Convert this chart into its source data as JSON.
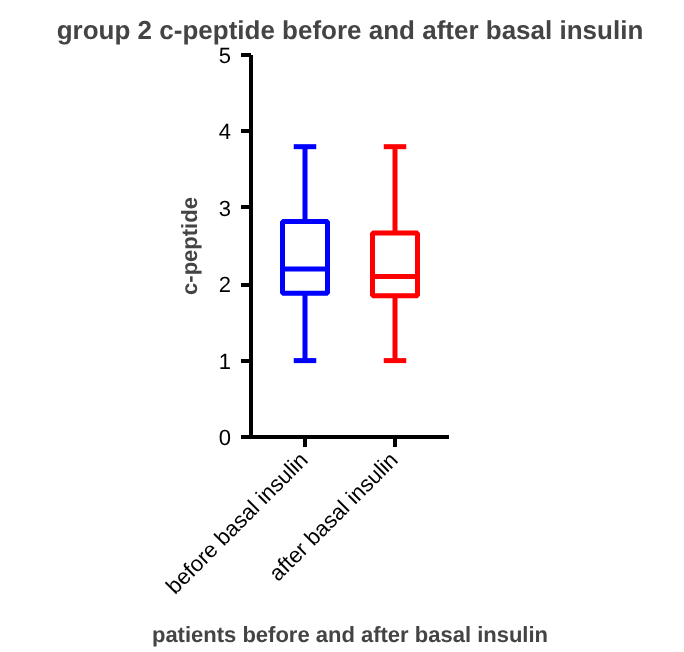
{
  "chart_data": {
    "type": "box",
    "title": "group 2 c-peptide before and after basal insulin",
    "xlabel": "patients before and after basal insulin",
    "ylabel": "c-peptide",
    "categories": [
      "before basal insulin",
      "after basal insulin"
    ],
    "colors": [
      "#0000ff",
      "#ff0000"
    ],
    "boxes": [
      {
        "low": 1.0,
        "q1": 1.88,
        "median": 2.2,
        "q3": 2.82,
        "high": 3.8
      },
      {
        "low": 1.0,
        "q1": 1.85,
        "median": 2.1,
        "q3": 2.67,
        "high": 3.8
      }
    ],
    "ylim": [
      0,
      5
    ],
    "yticks": [
      0,
      1,
      2,
      3,
      4,
      5
    ],
    "grid": false
  }
}
